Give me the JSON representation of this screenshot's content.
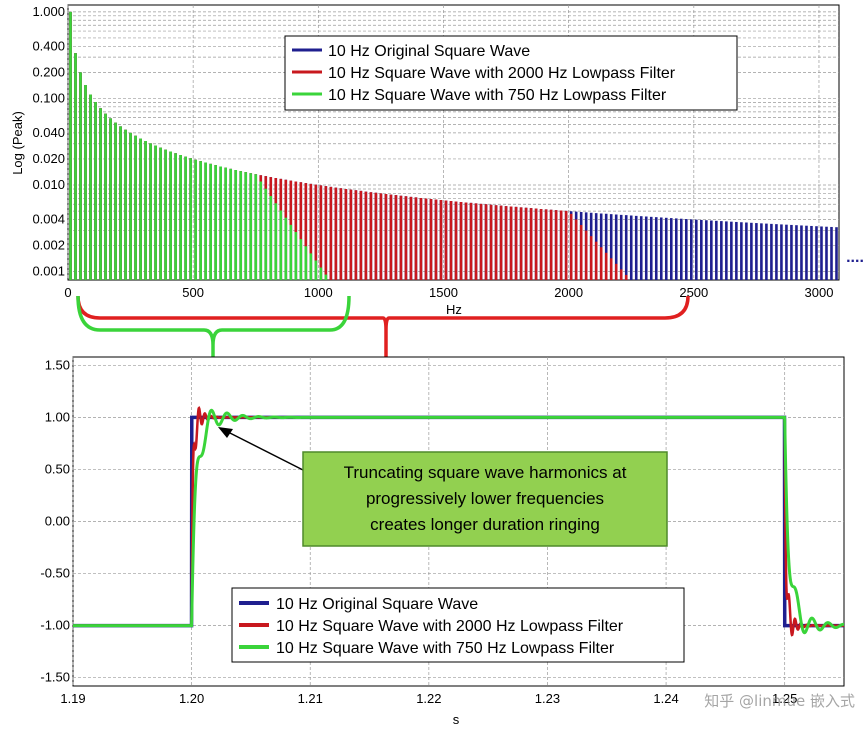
{
  "colors": {
    "original": "#1f1f8f",
    "lp2000": "#c8181e",
    "lp750": "#3ad43a",
    "bracket_red": "#e02020",
    "bracket_green": "#3ad43a",
    "annotation_bg": "#92d050",
    "annotation_border": "#4f8a2a"
  },
  "chart_data": [
    {
      "type": "bar",
      "title": "",
      "xlabel": "Hz",
      "ylabel": "Log (Peak)",
      "xlim": [
        0,
        3080
      ],
      "ylim": [
        0.0008,
        1.2
      ],
      "yscale": "log",
      "grid": true,
      "legend_position": "top-right",
      "x_ticks": [
        "0",
        "500",
        "1000",
        "1500",
        "2000",
        "2500",
        "3000"
      ],
      "y_ticks": [
        "1.000",
        "0.400",
        "0.200",
        "0.100",
        "0.040",
        "0.020",
        "0.010",
        "0.004",
        "0.002",
        "0.001"
      ],
      "harmonic_spacing_hz": 20,
      "series": [
        {
          "name": "10 Hz Original Square Wave",
          "first_harmonic_hz": 10,
          "peak_law": "1/n",
          "cutoff_hz": 3080
        },
        {
          "name": "10 Hz Square Wave with 2000 Hz Lowpass Filter",
          "first_harmonic_hz": 10,
          "peak_law": "1/n",
          "cutoff_hz": 2000,
          "rolloff_end_hz": 2450
        },
        {
          "name": "10 Hz Square Wave with 750 Hz Lowpass Filter",
          "first_harmonic_hz": 10,
          "peak_law": "1/n",
          "cutoff_hz": 750,
          "rolloff_end_hz": 1120
        }
      ],
      "trailing_marker": "...."
    },
    {
      "type": "line",
      "title": "",
      "xlabel": "s",
      "ylabel": "",
      "xlim": [
        1.19,
        1.255
      ],
      "ylim": [
        -1.58,
        1.58
      ],
      "grid": true,
      "legend_position": "bottom-center",
      "x_ticks": [
        "1.19",
        "1.20",
        "1.21",
        "1.22",
        "1.23",
        "1.24",
        "1.25"
      ],
      "y_ticks": [
        "1.50",
        "1.00",
        "0.50",
        "0.00",
        "-0.50",
        "-1.00",
        "-1.50"
      ],
      "series": [
        {
          "name": "10 Hz Original Square Wave",
          "low": -1.0,
          "high": 1.0,
          "rise_s": 1.2,
          "fall_s": 1.25,
          "overshoot": 0.0,
          "ring_decay_s": 0.0
        },
        {
          "name": "10 Hz Square Wave with 2000 Hz Lowpass Filter",
          "low": -1.0,
          "high": 1.0,
          "rise_s": 1.2,
          "fall_s": 1.25,
          "overshoot": 0.36,
          "ring_freq_hz": 2000,
          "ring_decay_s": 0.0005
        },
        {
          "name": "10 Hz Square Wave with 750 Hz Lowpass Filter",
          "low": -1.0,
          "high": 1.0,
          "rise_s": 1.2,
          "fall_s": 1.25,
          "overshoot": 0.28,
          "ring_freq_hz": 750,
          "ring_decay_s": 0.0016
        }
      ]
    }
  ],
  "annotation": {
    "lines": [
      "Truncating square wave harmonics at",
      "progressively lower frequencies",
      "creates longer duration ringing"
    ]
  },
  "watermark": "知乎 @linmue 嵌入式"
}
